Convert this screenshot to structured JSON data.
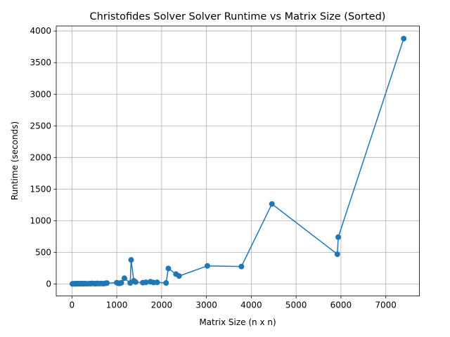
{
  "chart_data": {
    "type": "line",
    "title": "Christofides Solver Solver Runtime vs Matrix Size (Sorted)",
    "xlabel": "Matrix Size (n x n)",
    "ylabel": "Runtime (seconds)",
    "xlim": [
      -350,
      7750
    ],
    "ylim": [
      -190,
      4080
    ],
    "xticks": [
      0,
      1000,
      2000,
      3000,
      4000,
      5000,
      6000,
      7000
    ],
    "yticks": [
      0,
      500,
      1000,
      1500,
      2000,
      2500,
      3000,
      3500,
      4000
    ],
    "grid": true,
    "color": "#1f77b4",
    "marker": "circle",
    "series": [
      {
        "x": [
          10,
          30,
          50,
          70,
          90,
          100,
          120,
          130,
          150,
          170,
          180,
          200,
          220,
          250,
          280,
          300,
          350,
          400,
          420,
          450,
          500,
          530,
          560,
          600,
          650,
          700,
          750,
          780,
          1000,
          1030,
          1060,
          1100,
          1170,
          1300,
          1320,
          1380,
          1420,
          1580,
          1650,
          1750,
          1820,
          1900,
          2100,
          2150,
          2320,
          2390,
          3020,
          3780,
          4460,
          5920,
          5940,
          7400
        ],
        "y": [
          1,
          2,
          1,
          3,
          2,
          4,
          2,
          3,
          5,
          2,
          4,
          3,
          6,
          2,
          5,
          4,
          3,
          6,
          4,
          8,
          5,
          3,
          9,
          5,
          7,
          4,
          10,
          14,
          20,
          12,
          8,
          18,
          90,
          15,
          380,
          50,
          30,
          20,
          25,
          35,
          22,
          25,
          15,
          245,
          155,
          125,
          285,
          275,
          1265,
          470,
          740,
          3880
        ]
      }
    ]
  }
}
